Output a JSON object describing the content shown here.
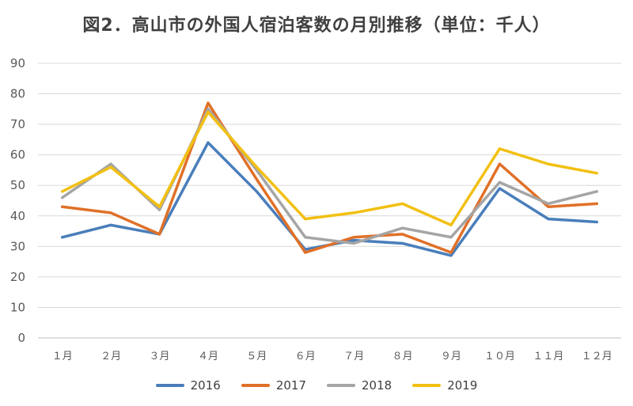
{
  "chart_data": {
    "type": "line",
    "title": "図2．高山市の外国人宿泊客数の月別推移（単位：千人）",
    "categories": [
      "１月",
      "２月",
      "３月",
      "４月",
      "５月",
      "６月",
      "７月",
      "８月",
      "９月",
      "１０月",
      "１１月",
      "１２月"
    ],
    "ylim": [
      0,
      90
    ],
    "yticks": [
      0,
      10,
      20,
      30,
      40,
      50,
      60,
      70,
      80,
      90
    ],
    "grid": true,
    "legend_position": "bottom",
    "series": [
      {
        "name": "2016",
        "color": "#4a7ebb",
        "values": [
          33,
          37,
          34,
          64,
          48,
          29,
          32,
          31,
          27,
          49,
          39,
          38
        ]
      },
      {
        "name": "2017",
        "color": "#e07028",
        "values": [
          43,
          41,
          34,
          77,
          52,
          28,
          33,
          34,
          28,
          57,
          43,
          44
        ]
      },
      {
        "name": "2018",
        "color": "#a5a5a5",
        "values": [
          46,
          57,
          42,
          75,
          55,
          33,
          31,
          36,
          33,
          51,
          44,
          48
        ]
      },
      {
        "name": "2019",
        "color": "#f2c012",
        "values": [
          48,
          56,
          43,
          74,
          56,
          39,
          41,
          44,
          37,
          62,
          57,
          54
        ]
      }
    ]
  }
}
